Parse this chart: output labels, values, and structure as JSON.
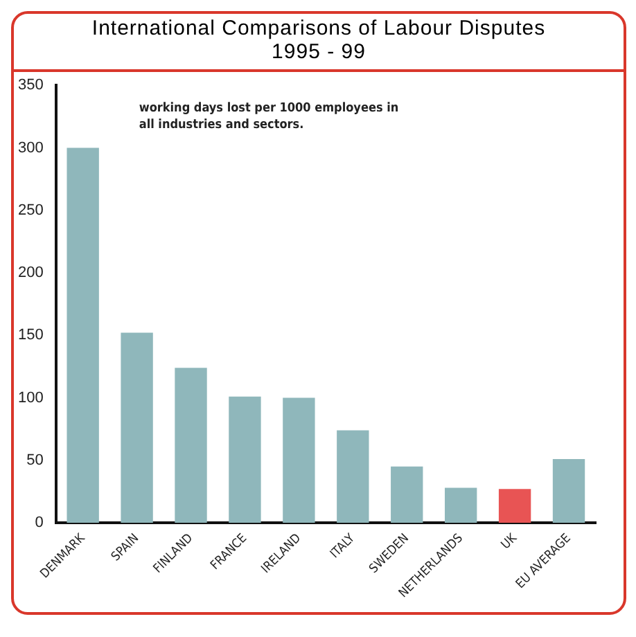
{
  "chart_data": {
    "type": "bar",
    "title": "International Comparisons of Labour Disputes",
    "subtitle": "1995 - 99",
    "categories": [
      "DENMARK",
      "SPAIN",
      "FINLAND",
      "FRANCE",
      "IRELAND",
      "ITALY",
      "SWEDEN",
      "NETHERLANDS",
      "UK",
      "EU AVERAGE"
    ],
    "values": [
      300,
      152,
      124,
      101,
      100,
      74,
      45,
      28,
      27,
      51
    ],
    "colors": [
      "#8fb7bb",
      "#8fb7bb",
      "#8fb7bb",
      "#8fb7bb",
      "#8fb7bb",
      "#8fb7bb",
      "#8fb7bb",
      "#8fb7bb",
      "#e85454",
      "#8fb7bb"
    ],
    "ylim": [
      0,
      350
    ],
    "yticks": [
      0,
      50,
      100,
      150,
      200,
      250,
      300,
      350
    ],
    "grid": false,
    "annotations": [
      "working days lost per 1000 employees in all industries and sectors."
    ]
  }
}
